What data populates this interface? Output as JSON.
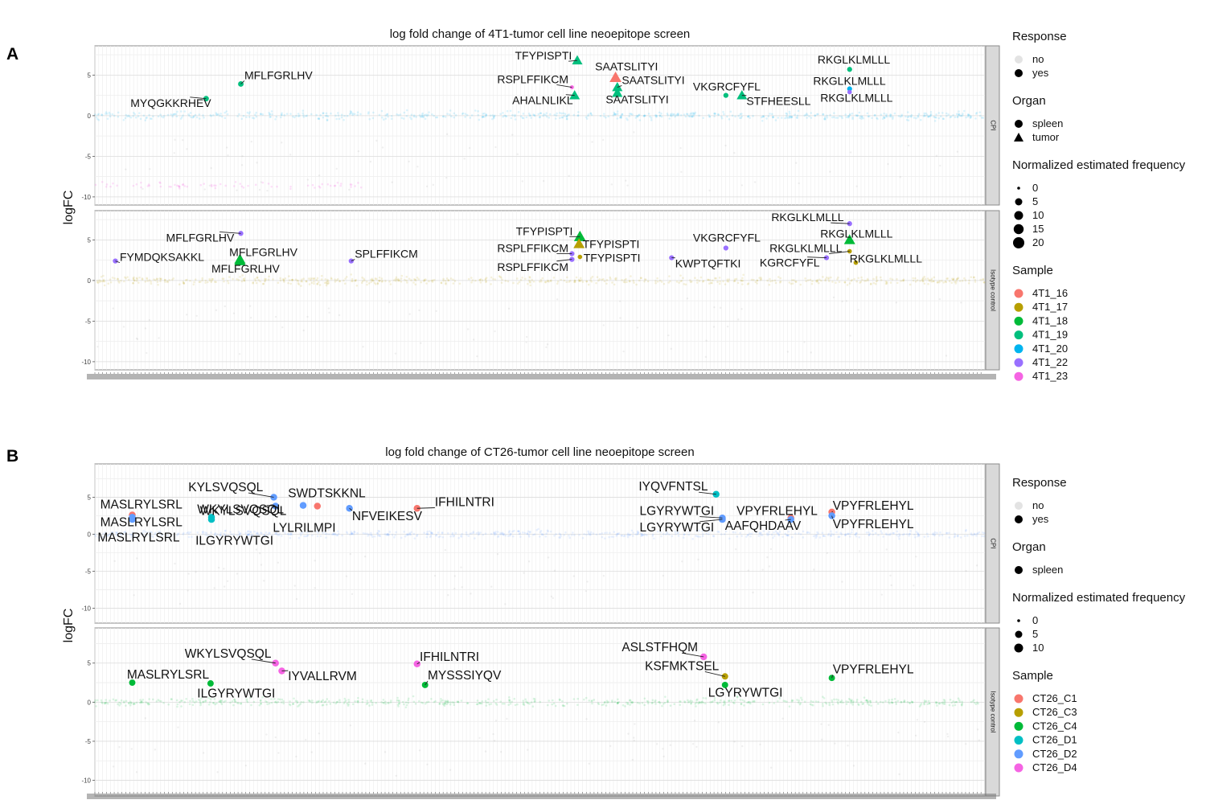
{
  "legend_titles": {
    "response": "Response",
    "organ": "Organ",
    "frequency": "Normalized estimated frequency",
    "sample": "Sample"
  },
  "chart_data": [
    {
      "type": "scatter",
      "panel_letter": "A",
      "title": "log fold change of 4T1-tumor cell line neoepitope screen",
      "ylabel": "logFC",
      "ylim": [
        -11,
        8.6
      ],
      "yticks": [
        5,
        0,
        -5,
        -10
      ],
      "facets": [
        "CPI",
        "Isotype control"
      ],
      "legend": {
        "response": [
          "no",
          "yes"
        ],
        "organ": [
          "spleen",
          "tumor"
        ],
        "frequency": [
          "0",
          "5",
          "10",
          "15",
          "20"
        ],
        "sample": [
          "4T1_16",
          "4T1_17",
          "4T1_18",
          "4T1_19",
          "4T1_20",
          "4T1_22",
          "4T1_23"
        ]
      },
      "colors": {
        "4T1_16": "#F8766D",
        "4T1_17": "#B79F00",
        "4T1_18": "#00BA38",
        "4T1_19": "#00BF7D",
        "4T1_20": "#00B4EF",
        "4T1_22": "#9970FF",
        "4T1_23": "#F564E3"
      },
      "background_colors": {
        "CPI": "#00B4EF",
        "Isotype control": "#B79F00"
      },
      "highlighted": [
        {
          "facet": "CPI",
          "x": 0.125,
          "y": 2.1,
          "sample": "4T1_19",
          "organ": "spleen",
          "freq": 6,
          "label": "MYQGKKRHEV",
          "lx": 0.04,
          "ly": 1.1
        },
        {
          "facet": "CPI",
          "x": 0.164,
          "y": 3.9,
          "sample": "4T1_19",
          "organ": "spleen",
          "freq": 6,
          "label": "MFLFGRLHV",
          "lx": 0.168,
          "ly": 4.5
        },
        {
          "facet": "CPI",
          "x": 0.542,
          "y": 6.8,
          "sample": "4T1_19",
          "organ": "tumor",
          "freq": 14,
          "label": "TFYPISPTI",
          "lx": 0.472,
          "ly": 6.9
        },
        {
          "facet": "CPI",
          "x": 0.536,
          "y": 3.5,
          "sample": "4T1_23",
          "organ": "spleen",
          "freq": 3,
          "label": "RSPLFFIKCM",
          "lx": 0.452,
          "ly": 4.0
        },
        {
          "facet": "CPI",
          "x": 0.539,
          "y": 2.5,
          "sample": "4T1_19",
          "organ": "tumor",
          "freq": 14,
          "label": "AHALNLIKL",
          "lx": 0.469,
          "ly": 1.4
        },
        {
          "facet": "CPI",
          "x": 0.585,
          "y": 4.7,
          "sample": "4T1_16",
          "organ": "tumor",
          "freq": 18,
          "label": "SAATSLITYI",
          "lx": 0.562,
          "ly": 5.6
        },
        {
          "facet": "CPI",
          "x": 0.587,
          "y": 3.5,
          "sample": "4T1_19",
          "organ": "tumor",
          "freq": 14,
          "label": "SAATSLITYI",
          "lx": 0.592,
          "ly": 3.9
        },
        {
          "facet": "CPI",
          "x": 0.587,
          "y": 2.8,
          "sample": "4T1_19",
          "organ": "tumor",
          "freq": 14,
          "label": "SAATSLITYI",
          "lx": 0.574,
          "ly": 1.5
        },
        {
          "facet": "CPI",
          "x": 0.709,
          "y": 2.5,
          "sample": "4T1_19",
          "organ": "spleen",
          "freq": 5,
          "label": "VKGRCFYFL",
          "lx": 0.672,
          "ly": 3.1
        },
        {
          "facet": "CPI",
          "x": 0.727,
          "y": 2.5,
          "sample": "4T1_19",
          "organ": "tumor",
          "freq": 14,
          "label": "STFHEESLL",
          "lx": 0.732,
          "ly": 1.3
        },
        {
          "facet": "CPI",
          "x": 0.848,
          "y": 5.7,
          "sample": "4T1_19",
          "organ": "spleen",
          "freq": 5,
          "label": "RKGLKLMLLL",
          "lx": 0.812,
          "ly": 6.4
        },
        {
          "facet": "CPI",
          "x": 0.848,
          "y": 3.3,
          "sample": "4T1_20",
          "organ": "spleen",
          "freq": 5,
          "label": "RKGLKLMLLL",
          "lx": 0.807,
          "ly": 3.8
        },
        {
          "facet": "CPI",
          "x": 0.848,
          "y": 2.9,
          "sample": "4T1_22",
          "organ": "spleen",
          "freq": 4,
          "label": "RKGLKLMLLL",
          "lx": 0.815,
          "ly": 1.7
        },
        {
          "facet": "Isotype control",
          "x": 0.023,
          "y": 2.4,
          "sample": "4T1_22",
          "organ": "spleen",
          "freq": 5,
          "label": "FYMDQKSAKKL",
          "lx": 0.028,
          "ly": 2.4
        },
        {
          "facet": "Isotype control",
          "x": 0.164,
          "y": 5.8,
          "sample": "4T1_22",
          "organ": "spleen",
          "freq": 5,
          "label": "MFLFGRLHV",
          "lx": 0.08,
          "ly": 4.8
        },
        {
          "facet": "Isotype control",
          "x": 0.163,
          "y": 2.6,
          "sample": "4T1_18",
          "organ": "tumor",
          "freq": 16,
          "label": "MFLFGRLHV",
          "lx": 0.151,
          "ly": 3.0
        },
        {
          "facet": "Isotype control",
          "x": 0.163,
          "y": 2.4,
          "sample": "4T1_18",
          "organ": "tumor",
          "freq": 16,
          "label": "MFLFGRLHV",
          "lx": 0.131,
          "ly": 1.0
        },
        {
          "facet": "Isotype control",
          "x": 0.288,
          "y": 2.4,
          "sample": "4T1_22",
          "organ": "spleen",
          "freq": 5,
          "label": "SPLFFIKCM",
          "lx": 0.292,
          "ly": 2.8
        },
        {
          "facet": "Isotype control",
          "x": 0.545,
          "y": 5.4,
          "sample": "4T1_18",
          "organ": "tumor",
          "freq": 18,
          "label": "TFYPISPTI",
          "lx": 0.473,
          "ly": 5.6
        },
        {
          "facet": "Isotype control",
          "x": 0.544,
          "y": 4.5,
          "sample": "4T1_17",
          "organ": "tumor",
          "freq": 16,
          "label": "TFYPISPTI",
          "lx": 0.548,
          "ly": 4.0
        },
        {
          "facet": "Isotype control",
          "x": 0.536,
          "y": 3.3,
          "sample": "4T1_22",
          "organ": "spleen",
          "freq": 5,
          "label": "RSPLFFIKCM",
          "lx": 0.452,
          "ly": 3.5
        },
        {
          "facet": "Isotype control",
          "x": 0.545,
          "y": 2.9,
          "sample": "4T1_17",
          "organ": "spleen",
          "freq": 4,
          "label": "TFYPISPTI",
          "lx": 0.549,
          "ly": 2.3
        },
        {
          "facet": "Isotype control",
          "x": 0.536,
          "y": 2.6,
          "sample": "4T1_22",
          "organ": "spleen",
          "freq": 5,
          "label": "RSPLFFIKCM",
          "lx": 0.452,
          "ly": 1.2
        },
        {
          "facet": "Isotype control",
          "x": 0.648,
          "y": 2.8,
          "sample": "4T1_22",
          "organ": "spleen",
          "freq": 5,
          "label": "KWPTQFTKI",
          "lx": 0.652,
          "ly": 1.6
        },
        {
          "facet": "Isotype control",
          "x": 0.709,
          "y": 4.0,
          "sample": "4T1_22",
          "organ": "spleen",
          "freq": 5,
          "label": "VKGRCFYFL",
          "lx": 0.672,
          "ly": 4.8
        },
        {
          "facet": "Isotype control",
          "x": 0.822,
          "y": 2.8,
          "sample": "4T1_22",
          "organ": "spleen",
          "freq": 5,
          "label": "KGRCFYFL",
          "lx": 0.747,
          "ly": 1.7
        },
        {
          "facet": "Isotype control",
          "x": 0.848,
          "y": 7.0,
          "sample": "4T1_22",
          "organ": "spleen",
          "freq": 5,
          "label": "RKGLKLMLLL",
          "lx": 0.76,
          "ly": 7.3
        },
        {
          "facet": "Isotype control",
          "x": 0.848,
          "y": 5.0,
          "sample": "4T1_18",
          "organ": "tumor",
          "freq": 16,
          "label": "RKGLKLMLLL",
          "lx": 0.815,
          "ly": 5.3
        },
        {
          "facet": "Isotype control",
          "x": 0.848,
          "y": 3.6,
          "sample": "4T1_17",
          "organ": "spleen",
          "freq": 4,
          "label": "RKGLKLMLLL",
          "lx": 0.758,
          "ly": 3.5
        },
        {
          "facet": "Isotype control",
          "x": 0.855,
          "y": 2.2,
          "sample": "4T1_17",
          "organ": "spleen",
          "freq": 4,
          "label": "RKGLKLMLLL",
          "lx": 0.848,
          "ly": 2.2
        }
      ]
    },
    {
      "type": "scatter",
      "panel_letter": "B",
      "title": "log fold change of CT26-tumor cell line neoepitope screen",
      "ylabel": "logFC",
      "ylim": [
        -12,
        9.5
      ],
      "yticks": [
        5,
        0,
        -5,
        -10
      ],
      "facets": [
        "CPI",
        "Isotype control"
      ],
      "legend": {
        "response": [
          "no",
          "yes"
        ],
        "organ": [
          "spleen"
        ],
        "frequency": [
          "0",
          "5",
          "10"
        ],
        "sample": [
          "CT26_C1",
          "CT26_C3",
          "CT26_C4",
          "CT26_D1",
          "CT26_D2",
          "CT26_D4"
        ]
      },
      "colors": {
        "CT26_C1": "#F8766D",
        "CT26_C3": "#B79F00",
        "CT26_C4": "#00BA38",
        "CT26_D1": "#00BFC4",
        "CT26_D2": "#619CFF",
        "CT26_D4": "#F564E3"
      },
      "background_colors": {
        "CPI": "#619CFF",
        "Isotype control": "#00BA38"
      },
      "highlighted": [
        {
          "facet": "CPI",
          "x": 0.042,
          "y": 2.6,
          "sample": "CT26_C1",
          "organ": "spleen",
          "freq": 8,
          "label": "MASLRYLSRL",
          "lx": 0.006,
          "ly": 3.5
        },
        {
          "facet": "CPI",
          "x": 0.042,
          "y": 2.3,
          "sample": "CT26_D2",
          "organ": "spleen",
          "freq": 8,
          "label": "MASLRYLSRL",
          "lx": 0.006,
          "ly": 1.1
        },
        {
          "facet": "CPI",
          "x": 0.042,
          "y": 2.0,
          "sample": "CT26_D2",
          "organ": "spleen",
          "freq": 8,
          "label": "MASLRYLSRL",
          "lx": 0.003,
          "ly": -1.0
        },
        {
          "facet": "CPI",
          "x": 0.131,
          "y": 2.3,
          "sample": "CT26_D1",
          "organ": "spleen",
          "freq": 8,
          "label": "WKYLSVQSQL",
          "lx": 0.115,
          "ly": 2.8
        },
        {
          "facet": "CPI",
          "x": 0.131,
          "y": 2.0,
          "sample": "CT26_D1",
          "organ": "spleen",
          "freq": 8,
          "label": "ILGYRYWTGI",
          "lx": 0.113,
          "ly": -1.4
        },
        {
          "facet": "CPI",
          "x": 0.201,
          "y": 5.0,
          "sample": "CT26_D2",
          "organ": "spleen",
          "freq": 8,
          "label": "KYLSVQSQL",
          "lx": 0.105,
          "ly": 5.8
        },
        {
          "facet": "CPI",
          "x": 0.203,
          "y": 3.8,
          "sample": "CT26_D2",
          "organ": "spleen",
          "freq": 8,
          "label": "WKYLSVQSQL",
          "lx": 0.118,
          "ly": 2.6
        },
        {
          "facet": "CPI",
          "x": 0.234,
          "y": 3.9,
          "sample": "CT26_D2",
          "organ": "spleen",
          "freq": 8,
          "label": "SWDTSKKNL",
          "lx": 0.217,
          "ly": 5.0
        },
        {
          "facet": "CPI",
          "x": 0.25,
          "y": 3.8,
          "sample": "CT26_C1",
          "organ": "spleen",
          "freq": 8,
          "label": "LYLRILMPI",
          "lx": 0.2,
          "ly": 0.3
        },
        {
          "facet": "CPI",
          "x": 0.286,
          "y": 3.5,
          "sample": "CT26_D2",
          "organ": "spleen",
          "freq": 8,
          "label": "NFVEIKESV",
          "lx": 0.289,
          "ly": 1.9
        },
        {
          "facet": "CPI",
          "x": 0.362,
          "y": 3.5,
          "sample": "CT26_C1",
          "organ": "spleen",
          "freq": 8,
          "label": "IFHILNTRI",
          "lx": 0.382,
          "ly": 3.8
        },
        {
          "facet": "CPI",
          "x": 0.698,
          "y": 5.4,
          "sample": "CT26_D1",
          "organ": "spleen",
          "freq": 8,
          "label": "IYQVFNTSL",
          "lx": 0.611,
          "ly": 5.9
        },
        {
          "facet": "CPI",
          "x": 0.705,
          "y": 2.2,
          "sample": "CT26_D2",
          "organ": "spleen",
          "freq": 8,
          "label": "LGYRYWTGI",
          "lx": 0.612,
          "ly": 2.6
        },
        {
          "facet": "CPI",
          "x": 0.705,
          "y": 2.0,
          "sample": "CT26_D2",
          "organ": "spleen",
          "freq": 8,
          "label": "LGYRYWTGI",
          "lx": 0.612,
          "ly": 0.4
        },
        {
          "facet": "CPI",
          "x": 0.782,
          "y": 2.2,
          "sample": "CT26_C1",
          "organ": "spleen",
          "freq": 8,
          "label": "VPYFRLEHYL",
          "lx": 0.721,
          "ly": 2.6
        },
        {
          "facet": "CPI",
          "x": 0.782,
          "y": 2.0,
          "sample": "CT26_D2",
          "organ": "spleen",
          "freq": 8,
          "label": "AAFQHDAAV",
          "lx": 0.708,
          "ly": 0.6
        },
        {
          "facet": "CPI",
          "x": 0.828,
          "y": 3.0,
          "sample": "CT26_C1",
          "organ": "spleen",
          "freq": 8,
          "label": "VPYFRLEHYL",
          "lx": 0.829,
          "ly": 3.3
        },
        {
          "facet": "CPI",
          "x": 0.828,
          "y": 2.5,
          "sample": "CT26_D2",
          "organ": "spleen",
          "freq": 8,
          "label": "VPYFRLEHYL",
          "lx": 0.829,
          "ly": 0.8
        },
        {
          "facet": "Isotype control",
          "x": 0.042,
          "y": 2.5,
          "sample": "CT26_C4",
          "organ": "spleen",
          "freq": 7,
          "label": "MASLRYLSRL",
          "lx": 0.036,
          "ly": 3.0
        },
        {
          "facet": "Isotype control",
          "x": 0.13,
          "y": 2.4,
          "sample": "CT26_C4",
          "organ": "spleen",
          "freq": 7,
          "label": "ILGYRYWTGI",
          "lx": 0.115,
          "ly": 0.6
        },
        {
          "facet": "Isotype control",
          "x": 0.203,
          "y": 5.0,
          "sample": "CT26_D4",
          "organ": "spleen",
          "freq": 8,
          "label": "WKYLSVQSQL",
          "lx": 0.101,
          "ly": 5.7
        },
        {
          "facet": "Isotype control",
          "x": 0.21,
          "y": 4.0,
          "sample": "CT26_D4",
          "organ": "spleen",
          "freq": 8,
          "label": "IYVALLRVM",
          "lx": 0.217,
          "ly": 2.8
        },
        {
          "facet": "Isotype control",
          "x": 0.362,
          "y": 4.9,
          "sample": "CT26_D4",
          "organ": "spleen",
          "freq": 8,
          "label": "IFHILNTRI",
          "lx": 0.365,
          "ly": 5.3
        },
        {
          "facet": "Isotype control",
          "x": 0.371,
          "y": 2.2,
          "sample": "CT26_C4",
          "organ": "spleen",
          "freq": 7,
          "label": "MYSSSIYQV",
          "lx": 0.374,
          "ly": 2.9
        },
        {
          "facet": "Isotype control",
          "x": 0.684,
          "y": 5.8,
          "sample": "CT26_D4",
          "organ": "spleen",
          "freq": 8,
          "label": "ASLSTFHQM",
          "lx": 0.592,
          "ly": 6.5
        },
        {
          "facet": "Isotype control",
          "x": 0.708,
          "y": 3.3,
          "sample": "CT26_C3",
          "organ": "spleen",
          "freq": 7,
          "label": "KSFMKTSEL",
          "lx": 0.618,
          "ly": 4.1
        },
        {
          "facet": "Isotype control",
          "x": 0.708,
          "y": 2.2,
          "sample": "CT26_C4",
          "organ": "spleen",
          "freq": 7,
          "label": "LGYRYWTGI",
          "lx": 0.689,
          "ly": 0.7
        },
        {
          "facet": "Isotype control",
          "x": 0.828,
          "y": 3.1,
          "sample": "CT26_C4",
          "organ": "spleen",
          "freq": 7,
          "label": "VPYFRLEHYL",
          "lx": 0.829,
          "ly": 3.7
        }
      ]
    }
  ]
}
